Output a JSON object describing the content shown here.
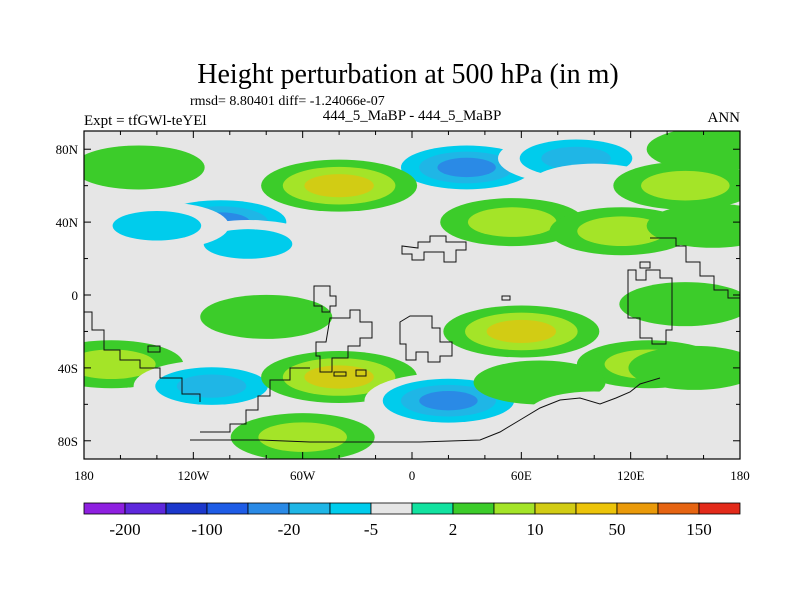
{
  "chart_data": {
    "type": "heatmap",
    "title": "Height perturbation at 500 hPa (in m)",
    "stats_line": "rmsd= 8.80401 diff= -1.24066e-07",
    "experiment_label": "Expt = tfGWl-teYEl",
    "case_label": "444_5_MaBP - 444_5_MaBP",
    "season_label": "ANN",
    "x_tick_labels": [
      "180",
      "120W",
      "60W",
      "0",
      "60E",
      "120E",
      "180"
    ],
    "x_tick_values": [
      -180,
      -120,
      -60,
      0,
      60,
      120,
      180
    ],
    "y_tick_labels": [
      "80N",
      "40N",
      "0",
      "40S",
      "80S"
    ],
    "y_tick_values": [
      80,
      40,
      0,
      -40,
      -80
    ],
    "xlim": [
      -180,
      180
    ],
    "ylim": [
      -90,
      90
    ],
    "colorbar_labels": [
      "-200",
      "-100",
      "-20",
      "-5",
      "2",
      "10",
      "50",
      "150"
    ],
    "colorbar_colors": [
      "#8e20e0",
      "#5e28dc",
      "#1c38cc",
      "#1e5ce6",
      "#2a8ae6",
      "#1fb6e6",
      "#00ccec",
      "#e6e6e6",
      "#12e2a0",
      "#3ccc2a",
      "#a4e428",
      "#d2cc14",
      "#ecc40a",
      "#ea9a0a",
      "#e66412",
      "#e32a1a"
    ],
    "field_features": [
      {
        "lon": -105,
        "lat": 40,
        "value": -30
      },
      {
        "lon": -90,
        "lat": 28,
        "value": -8
      },
      {
        "lon": -140,
        "lat": 38,
        "value": -6
      },
      {
        "lon": 30,
        "lat": 70,
        "value": -45
      },
      {
        "lon": 90,
        "lat": 75,
        "value": -15
      },
      {
        "lon": 100,
        "lat": 60,
        "value": -5
      },
      {
        "lon": -40,
        "lat": 60,
        "value": 12
      },
      {
        "lon": -150,
        "lat": 70,
        "value": 4
      },
      {
        "lon": 150,
        "lat": 60,
        "value": 8
      },
      {
        "lon": 55,
        "lat": 40,
        "value": 5
      },
      {
        "lon": 115,
        "lat": 35,
        "value": 7
      },
      {
        "lon": 165,
        "lat": 38,
        "value": 4
      },
      {
        "lon": 165,
        "lat": 80,
        "value": 4
      },
      {
        "lon": -150,
        "lat": -8,
        "value": -4
      },
      {
        "lon": -80,
        "lat": -12,
        "value": 3
      },
      {
        "lon": 60,
        "lat": -20,
        "value": 12
      },
      {
        "lon": 150,
        "lat": -5,
        "value": 4
      },
      {
        "lon": 130,
        "lat": -38,
        "value": 8
      },
      {
        "lon": -165,
        "lat": -38,
        "value": 9
      },
      {
        "lon": -110,
        "lat": -50,
        "value": -20
      },
      {
        "lon": -40,
        "lat": -45,
        "value": 14
      },
      {
        "lon": 20,
        "lat": -58,
        "value": -35
      },
      {
        "lon": 70,
        "lat": -48,
        "value": 4
      },
      {
        "lon": 100,
        "lat": -65,
        "value": -4
      },
      {
        "lon": 160,
        "lat": -65,
        "value": -5
      },
      {
        "lon": -60,
        "lat": -78,
        "value": 6
      },
      {
        "lon": 155,
        "lat": -40,
        "value": 4
      }
    ]
  }
}
